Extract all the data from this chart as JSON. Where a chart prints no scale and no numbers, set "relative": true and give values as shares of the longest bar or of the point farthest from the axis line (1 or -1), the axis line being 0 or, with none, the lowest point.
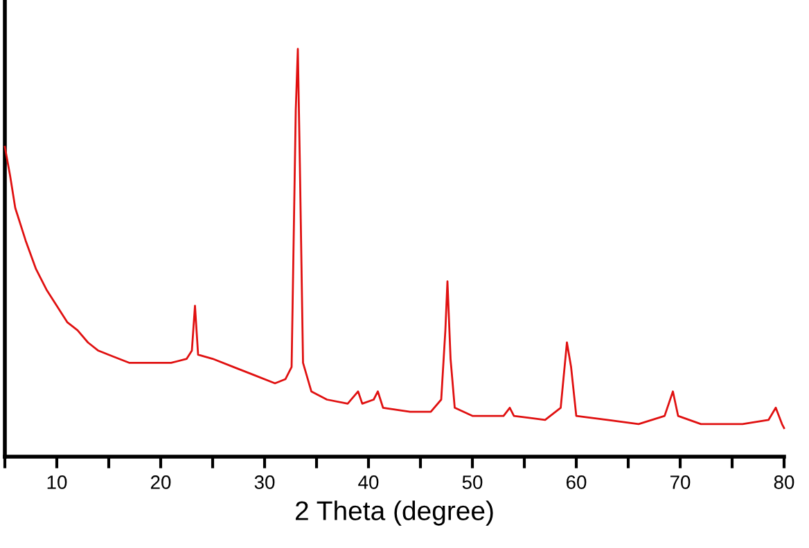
{
  "chart_data": {
    "type": "line",
    "relative": true,
    "xlabel": "2 Theta (degree)",
    "xlim": [
      5,
      80
    ],
    "xticks": [
      {
        "value": 5,
        "label": null
      },
      10,
      {
        "value": 15,
        "label": null
      },
      20,
      {
        "value": 25,
        "label": null
      },
      30,
      {
        "value": 35,
        "label": null
      },
      40,
      {
        "value": 45,
        "label": null
      },
      50,
      {
        "value": 55,
        "label": null
      },
      60,
      {
        "value": 65,
        "label": null
      },
      70,
      {
        "value": 75,
        "label": null
      },
      80
    ],
    "tick_labels": "x",
    "grid": false,
    "legend": false,
    "marker": "none",
    "line_style": "solid",
    "series": [
      {
        "color": "#e01010",
        "x": [
          5,
          5.5,
          6,
          7,
          8,
          9,
          10,
          11,
          12,
          13,
          14,
          15,
          17,
          19,
          21,
          22.5,
          23,
          23.3,
          23.6,
          25,
          27,
          29,
          31,
          32,
          32.6,
          33.0,
          33.2,
          33.4,
          33.7,
          34.5,
          36,
          38,
          39,
          39.4,
          40.5,
          40.9,
          41.4,
          44,
          46,
          47,
          47.4,
          47.6,
          47.9,
          48.3,
          50,
          53,
          53.6,
          54,
          57,
          58.5,
          59.1,
          59.5,
          60,
          63,
          66,
          68.5,
          69.3,
          69.8,
          72,
          76,
          78.5,
          79.2,
          79.8,
          80
        ],
        "values": [
          0.76,
          0.69,
          0.61,
          0.53,
          0.46,
          0.41,
          0.37,
          0.33,
          0.31,
          0.28,
          0.26,
          0.25,
          0.23,
          0.23,
          0.23,
          0.24,
          0.26,
          0.37,
          0.25,
          0.24,
          0.22,
          0.2,
          0.18,
          0.19,
          0.22,
          0.85,
          1.0,
          0.71,
          0.23,
          0.16,
          0.14,
          0.13,
          0.16,
          0.13,
          0.14,
          0.16,
          0.12,
          0.11,
          0.11,
          0.14,
          0.31,
          0.43,
          0.24,
          0.12,
          0.1,
          0.1,
          0.12,
          0.1,
          0.09,
          0.12,
          0.28,
          0.22,
          0.1,
          0.09,
          0.08,
          0.1,
          0.16,
          0.1,
          0.08,
          0.08,
          0.09,
          0.12,
          0.08,
          0.07
        ]
      }
    ]
  }
}
